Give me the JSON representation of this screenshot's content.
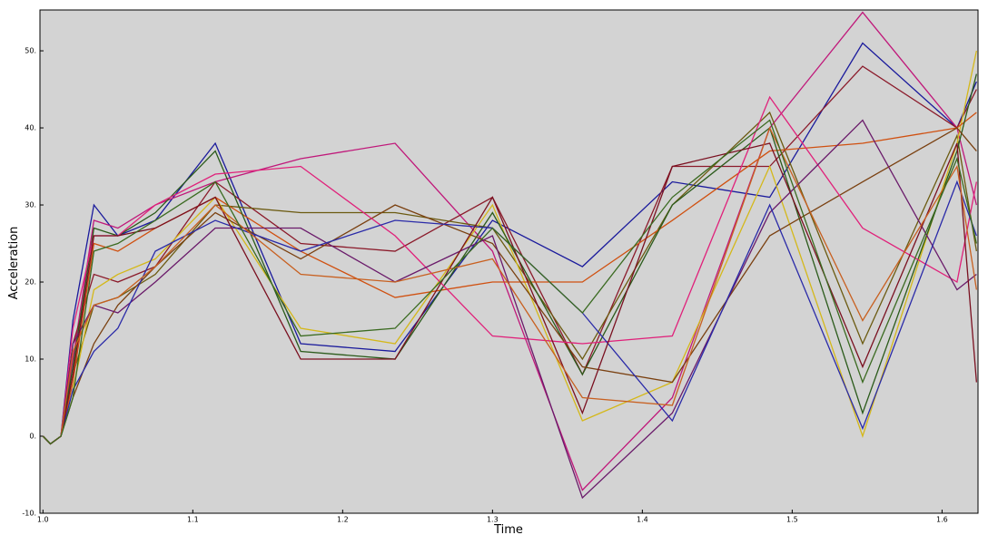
{
  "chart_data": {
    "type": "line",
    "x_label": "Time",
    "y_label": "Acceleration",
    "x": [
      1.0,
      1.005,
      1.012,
      1.02,
      1.034,
      1.05,
      1.075,
      1.115,
      1.172,
      1.235,
      1.3,
      1.36,
      1.42,
      1.485,
      1.547,
      1.61,
      1.623
    ],
    "xlim": [
      0.998,
      1.624
    ],
    "ylim": [
      -10,
      55.3
    ],
    "xticks": [
      {
        "value": 1.0,
        "label": "1.0"
      },
      {
        "value": 1.1,
        "label": "1.1"
      },
      {
        "value": 1.2,
        "label": "1.2"
      },
      {
        "value": 1.3,
        "label": "1.3"
      },
      {
        "value": 1.4,
        "label": "1.4"
      },
      {
        "value": 1.5,
        "label": "1.5"
      },
      {
        "value": 1.6,
        "label": "1.6"
      }
    ],
    "yticks": [
      {
        "value": -10,
        "label": "-10."
      },
      {
        "value": 0,
        "label": "0."
      },
      {
        "value": 10,
        "label": "10."
      },
      {
        "value": 20,
        "label": "20."
      },
      {
        "value": 30,
        "label": "30."
      },
      {
        "value": 40,
        "label": "40."
      },
      {
        "value": 50,
        "label": "50."
      }
    ],
    "background": "#d3d3d3",
    "series": [
      {
        "color": "#1a1a9c",
        "values": [
          0,
          -1,
          0,
          15,
          30,
          26,
          28,
          38,
          12,
          11,
          28,
          22,
          33,
          31,
          51,
          40,
          46
        ]
      },
      {
        "color": "#c0187a",
        "values": [
          0,
          -1,
          0,
          10,
          28,
          27,
          30,
          33,
          36,
          38,
          24,
          -7,
          5,
          40,
          55,
          40,
          30
        ]
      },
      {
        "color": "#8b1a2a",
        "values": [
          0,
          -1,
          0,
          12,
          21,
          20,
          22,
          33,
          25,
          24,
          31,
          8,
          35,
          35,
          48,
          40,
          45
        ]
      },
      {
        "color": "#6b5a10",
        "values": [
          0,
          -1,
          0,
          8,
          17,
          18,
          21,
          30,
          29,
          29,
          27,
          10,
          30,
          42,
          12,
          39,
          24
        ]
      },
      {
        "color": "#d4b81a",
        "values": [
          0,
          -1,
          0,
          6,
          19,
          21,
          23,
          31,
          14,
          12,
          30,
          2,
          7,
          35,
          0,
          38,
          50
        ]
      },
      {
        "color": "#d05010",
        "values": [
          0,
          -1,
          0,
          7,
          25,
          24,
          27,
          31,
          24,
          18,
          20,
          20,
          28,
          37,
          38,
          40,
          42
        ]
      },
      {
        "color": "#2a5a1a",
        "values": [
          0,
          -1,
          0,
          9,
          27,
          26,
          29,
          37,
          11,
          10,
          29,
          8,
          30,
          40,
          3,
          37,
          47
        ]
      },
      {
        "color": "#7a4010",
        "values": [
          0,
          -1,
          0,
          5,
          12,
          17,
          22,
          29,
          23,
          30,
          25,
          9,
          7,
          26,
          33,
          40,
          37
        ]
      },
      {
        "color": "#e0207a",
        "values": [
          0,
          -1,
          0,
          14,
          26,
          26,
          30,
          34,
          35,
          26,
          13,
          12,
          13,
          44,
          27,
          20,
          33
        ]
      },
      {
        "color": "#6a1a6a",
        "values": [
          0,
          -1,
          0,
          12,
          17,
          16,
          20,
          27,
          27,
          20,
          26,
          -8,
          3,
          29,
          41,
          19,
          21
        ]
      },
      {
        "color": "#2a2aa8",
        "values": [
          0,
          -1,
          0,
          6,
          11,
          14,
          24,
          28,
          24,
          28,
          27,
          16,
          2,
          30,
          1,
          33,
          26
        ]
      },
      {
        "color": "#7a1020",
        "values": [
          0,
          -1,
          0,
          8,
          26,
          26,
          27,
          31,
          10,
          10,
          31,
          3,
          35,
          38,
          9,
          38,
          7
        ]
      },
      {
        "color": "#c86020",
        "values": [
          0,
          -1,
          0,
          11,
          17,
          18,
          22,
          30,
          21,
          20,
          23,
          5,
          4,
          40,
          15,
          35,
          19
        ]
      },
      {
        "color": "#3a6a20",
        "values": [
          0,
          -1,
          0,
          5,
          24,
          25,
          28,
          33,
          13,
          14,
          27,
          16,
          31,
          41,
          7,
          36,
          25
        ]
      }
    ]
  }
}
